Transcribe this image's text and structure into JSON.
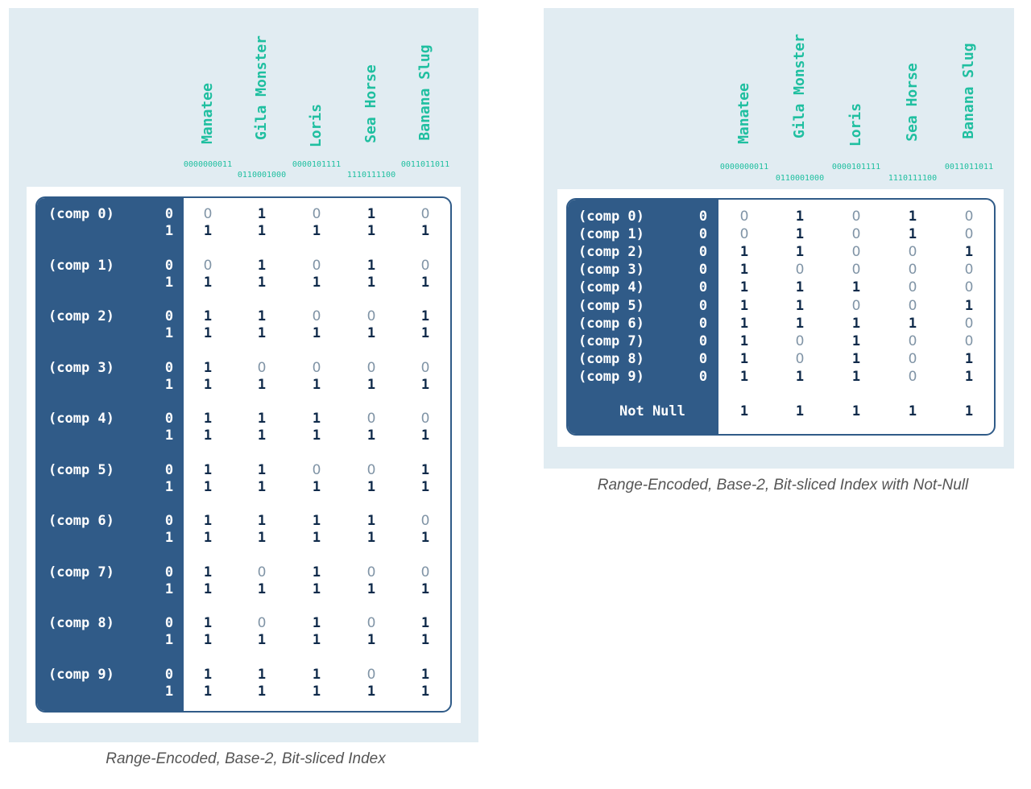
{
  "left_diagram": {
    "columns": [
      {
        "name": "Manatee",
        "code": "0000000011"
      },
      {
        "name": "Gila Monster",
        "code": "0110001000"
      },
      {
        "name": "Loris",
        "code": "0000101111"
      },
      {
        "name": "Sea Horse",
        "code": "1110111100"
      },
      {
        "name": "Banana Slug",
        "code": "0011011011"
      }
    ],
    "groups": [
      {
        "label": "(comp 0)",
        "rows": [
          {
            "digit": "0",
            "bits": [
              "0",
              "1",
              "0",
              "1",
              "0"
            ]
          },
          {
            "digit": "1",
            "bits": [
              "1",
              "1",
              "1",
              "1",
              "1"
            ]
          }
        ]
      },
      {
        "label": "(comp 1)",
        "rows": [
          {
            "digit": "0",
            "bits": [
              "0",
              "1",
              "0",
              "1",
              "0"
            ]
          },
          {
            "digit": "1",
            "bits": [
              "1",
              "1",
              "1",
              "1",
              "1"
            ]
          }
        ]
      },
      {
        "label": "(comp 2)",
        "rows": [
          {
            "digit": "0",
            "bits": [
              "1",
              "1",
              "0",
              "0",
              "1"
            ]
          },
          {
            "digit": "1",
            "bits": [
              "1",
              "1",
              "1",
              "1",
              "1"
            ]
          }
        ]
      },
      {
        "label": "(comp 3)",
        "rows": [
          {
            "digit": "0",
            "bits": [
              "1",
              "0",
              "0",
              "0",
              "0"
            ]
          },
          {
            "digit": "1",
            "bits": [
              "1",
              "1",
              "1",
              "1",
              "1"
            ]
          }
        ]
      },
      {
        "label": "(comp 4)",
        "rows": [
          {
            "digit": "0",
            "bits": [
              "1",
              "1",
              "1",
              "0",
              "0"
            ]
          },
          {
            "digit": "1",
            "bits": [
              "1",
              "1",
              "1",
              "1",
              "1"
            ]
          }
        ]
      },
      {
        "label": "(comp 5)",
        "rows": [
          {
            "digit": "0",
            "bits": [
              "1",
              "1",
              "0",
              "0",
              "1"
            ]
          },
          {
            "digit": "1",
            "bits": [
              "1",
              "1",
              "1",
              "1",
              "1"
            ]
          }
        ]
      },
      {
        "label": "(comp 6)",
        "rows": [
          {
            "digit": "0",
            "bits": [
              "1",
              "1",
              "1",
              "1",
              "0"
            ]
          },
          {
            "digit": "1",
            "bits": [
              "1",
              "1",
              "1",
              "1",
              "1"
            ]
          }
        ]
      },
      {
        "label": "(comp 7)",
        "rows": [
          {
            "digit": "0",
            "bits": [
              "1",
              "0",
              "1",
              "0",
              "0"
            ]
          },
          {
            "digit": "1",
            "bits": [
              "1",
              "1",
              "1",
              "1",
              "1"
            ]
          }
        ]
      },
      {
        "label": "(comp 8)",
        "rows": [
          {
            "digit": "0",
            "bits": [
              "1",
              "0",
              "1",
              "0",
              "1"
            ]
          },
          {
            "digit": "1",
            "bits": [
              "1",
              "1",
              "1",
              "1",
              "1"
            ]
          }
        ]
      },
      {
        "label": "(comp 9)",
        "rows": [
          {
            "digit": "0",
            "bits": [
              "1",
              "1",
              "1",
              "0",
              "1"
            ]
          },
          {
            "digit": "1",
            "bits": [
              "1",
              "1",
              "1",
              "1",
              "1"
            ]
          }
        ]
      }
    ],
    "caption": "Range-Encoded, Base-2, Bit-sliced Index"
  },
  "right_diagram": {
    "columns": [
      {
        "name": "Manatee",
        "code": "0000000011"
      },
      {
        "name": "Gila Monster",
        "code": "0110001000"
      },
      {
        "name": "Loris",
        "code": "0000101111"
      },
      {
        "name": "Sea Horse",
        "code": "1110111100"
      },
      {
        "name": "Banana Slug",
        "code": "0011011011"
      }
    ],
    "rows": [
      {
        "label": "(comp 0)",
        "digit": "0",
        "bits": [
          "0",
          "1",
          "0",
          "1",
          "0"
        ]
      },
      {
        "label": "(comp 1)",
        "digit": "0",
        "bits": [
          "0",
          "1",
          "0",
          "1",
          "0"
        ]
      },
      {
        "label": "(comp 2)",
        "digit": "0",
        "bits": [
          "1",
          "1",
          "0",
          "0",
          "1"
        ]
      },
      {
        "label": "(comp 3)",
        "digit": "0",
        "bits": [
          "1",
          "0",
          "0",
          "0",
          "0"
        ]
      },
      {
        "label": "(comp 4)",
        "digit": "0",
        "bits": [
          "1",
          "1",
          "1",
          "0",
          "0"
        ]
      },
      {
        "label": "(comp 5)",
        "digit": "0",
        "bits": [
          "1",
          "1",
          "0",
          "0",
          "1"
        ]
      },
      {
        "label": "(comp 6)",
        "digit": "0",
        "bits": [
          "1",
          "1",
          "1",
          "1",
          "0"
        ]
      },
      {
        "label": "(comp 7)",
        "digit": "0",
        "bits": [
          "1",
          "0",
          "1",
          "0",
          "0"
        ]
      },
      {
        "label": "(comp 8)",
        "digit": "0",
        "bits": [
          "1",
          "0",
          "1",
          "0",
          "1"
        ]
      },
      {
        "label": "(comp 9)",
        "digit": "0",
        "bits": [
          "1",
          "1",
          "1",
          "0",
          "1"
        ]
      }
    ],
    "not_null": {
      "label": "Not Null",
      "bits": [
        "1",
        "1",
        "1",
        "1",
        "1"
      ]
    },
    "caption": "Range-Encoded, Base-2, Bit-sliced Index with Not-Null"
  }
}
